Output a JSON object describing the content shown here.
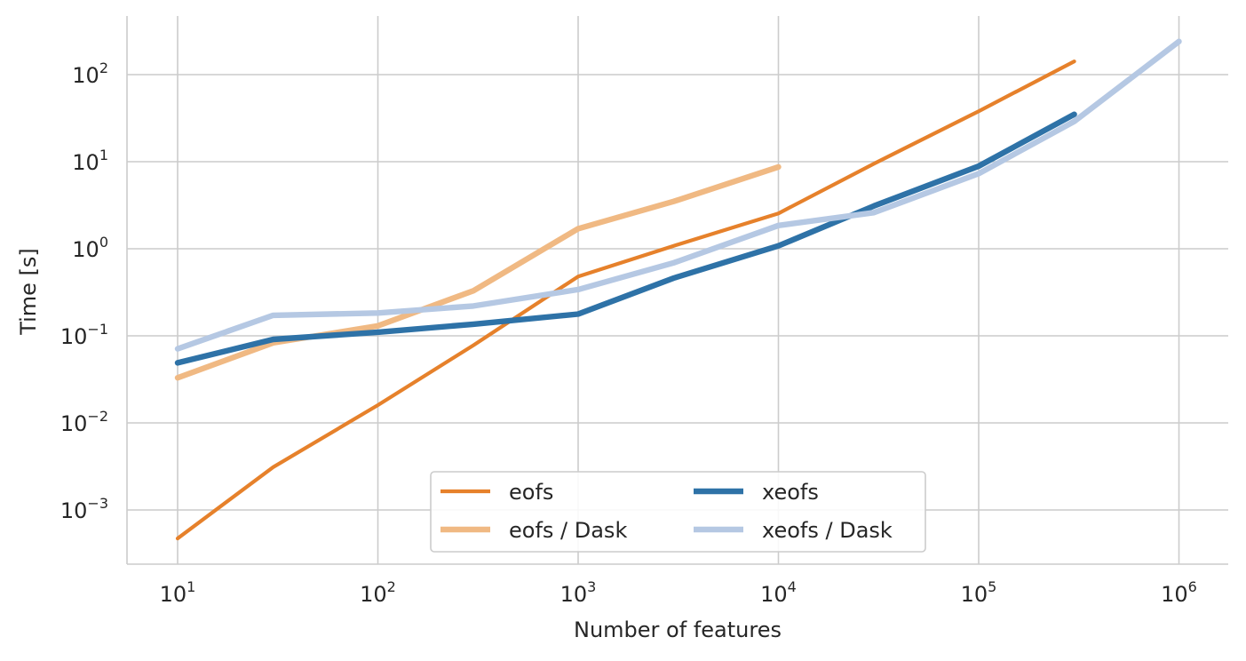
{
  "chart_data": {
    "type": "line",
    "title": "",
    "xlabel": "Number of features",
    "ylabel": "Time [s]",
    "xscale": "log",
    "yscale": "log",
    "xlim": [
      5.5,
      1800000
    ],
    "ylim": [
      0.00023,
      460
    ],
    "grid": true,
    "legend_position": "bottom-center",
    "legend_columns": 2,
    "x_ticks": [
      {
        "base": "10",
        "exp": "1",
        "value": 10
      },
      {
        "base": "10",
        "exp": "2",
        "value": 100
      },
      {
        "base": "10",
        "exp": "3",
        "value": 1000
      },
      {
        "base": "10",
        "exp": "4",
        "value": 10000
      },
      {
        "base": "10",
        "exp": "5",
        "value": 100000
      },
      {
        "base": "10",
        "exp": "6",
        "value": 1000000
      }
    ],
    "y_ticks": [
      {
        "base": "10",
        "exp": "−3",
        "value": 0.001
      },
      {
        "base": "10",
        "exp": "−2",
        "value": 0.01
      },
      {
        "base": "10",
        "exp": "−1",
        "value": 0.1
      },
      {
        "base": "10",
        "exp": "0",
        "value": 1
      },
      {
        "base": "10",
        "exp": "1",
        "value": 10
      },
      {
        "base": "10",
        "exp": "2",
        "value": 100
      }
    ],
    "series": [
      {
        "name": "eofs",
        "color": "#e6812b",
        "weight": "thin",
        "x": [
          10,
          30,
          100,
          300,
          1000,
          3000,
          10000,
          30000,
          100000,
          300000
        ],
        "y": [
          0.00047,
          0.0031,
          0.016,
          0.078,
          0.48,
          1.08,
          2.55,
          9.5,
          38,
          142
        ]
      },
      {
        "name": "eofs / Dask",
        "color": "#f0b983",
        "weight": "thick",
        "x": [
          10,
          30,
          100,
          300,
          1000,
          3000,
          10000
        ],
        "y": [
          0.033,
          0.083,
          0.13,
          0.33,
          1.7,
          3.5,
          8.7
        ]
      },
      {
        "name": "xeofs",
        "color": "#2e72a7",
        "weight": "thick",
        "x": [
          10,
          30,
          100,
          300,
          1000,
          3000,
          10000,
          30000,
          100000,
          300000
        ],
        "y": [
          0.049,
          0.091,
          0.11,
          0.136,
          0.178,
          0.46,
          1.08,
          3.1,
          8.9,
          35
        ]
      },
      {
        "name": "xeofs / Dask",
        "color": "#b5c8e3",
        "weight": "thick",
        "x": [
          10,
          30,
          100,
          300,
          1000,
          3000,
          10000,
          30000,
          100000,
          300000,
          1000000
        ],
        "y": [
          0.071,
          0.172,
          0.183,
          0.22,
          0.34,
          0.69,
          1.85,
          2.6,
          7.3,
          29,
          240
        ]
      }
    ]
  }
}
